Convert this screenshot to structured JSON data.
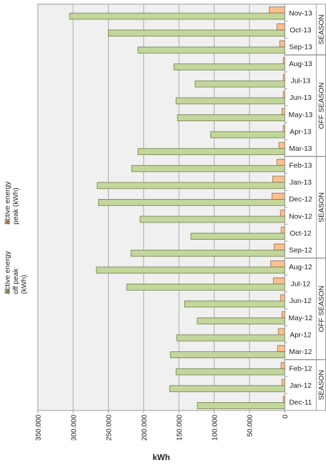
{
  "chart_data": {
    "type": "bar",
    "orientation": "horizontal",
    "categories": [
      "Nov-13",
      "Oct-13",
      "Sep-13",
      "Aug-13",
      "Jul-13",
      "Jun-13",
      "May-13",
      "Apr-13",
      "Mar-13",
      "Feb-13",
      "Jan-13",
      "Dec-12",
      "Nov-12",
      "Oct-12",
      "Sep-12",
      "Aug-12",
      "Jul-12",
      "Jun-12",
      "May-12",
      "Apr-12",
      "Mar-12",
      "Feb-12",
      "Jan-12",
      "Dec-11"
    ],
    "series": [
      {
        "name": "active energy off peak (kWh)",
        "color": "#c3d69b",
        "values": [
          305000,
          250000,
          208000,
          157000,
          127000,
          154000,
          152000,
          105000,
          208000,
          217000,
          266000,
          264000,
          205000,
          133000,
          218000,
          267000,
          224000,
          142000,
          124000,
          153000,
          162000,
          154000,
          163000,
          124000
        ]
      },
      {
        "name": "active energy peak (kWh)",
        "color": "#fac090",
        "values": [
          22000,
          11000,
          7000,
          2000,
          2000,
          2000,
          4000,
          2000,
          8000,
          11000,
          17000,
          18000,
          6000,
          5000,
          15000,
          20000,
          16000,
          6000,
          4000,
          9000,
          10000,
          5000,
          4000,
          2000
        ]
      }
    ],
    "groups": [
      {
        "label": "SEASON",
        "categories": [
          "Nov-13",
          "Oct-13",
          "Sep-13"
        ]
      },
      {
        "label": "OFF SEASON",
        "categories": [
          "Aug-13",
          "Jul-13",
          "Jun-13",
          "May-13",
          "Apr-13",
          "Mar-13"
        ]
      },
      {
        "label": "SEASON",
        "categories": [
          "Feb-13",
          "Jan-13",
          "Dec-12",
          "Nov-12",
          "Oct-12",
          "Sep-12"
        ]
      },
      {
        "label": "OFF SEASON",
        "categories": [
          "Aug-12",
          "Jul-12",
          "Jun-12",
          "May-12",
          "Apr-12",
          "Mar-12"
        ]
      },
      {
        "label": "SEASON",
        "categories": [
          "Feb-12",
          "Jan-12",
          "Dec-11"
        ]
      }
    ],
    "xlabel": "kWh",
    "xlim": [
      0,
      350000
    ],
    "xticks": [
      0,
      50000,
      100000,
      150000,
      200000,
      250000,
      300000,
      350000
    ],
    "xtick_labels": [
      "0",
      "50.000",
      "100.000",
      "150.000",
      "200.000",
      "250.000",
      "300.000",
      "350.000"
    ],
    "x_reversed": true,
    "grid": true,
    "legend_position": "left"
  }
}
